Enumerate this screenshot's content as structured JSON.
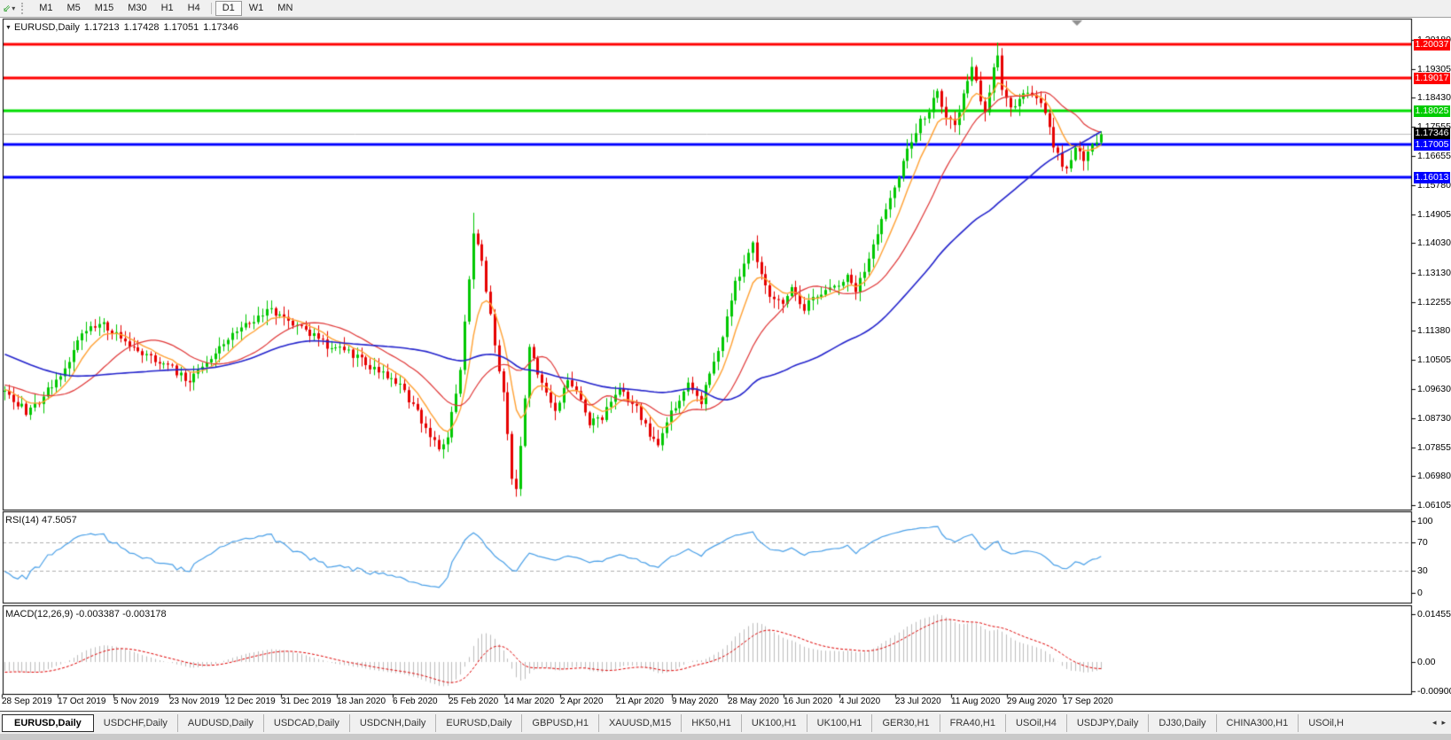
{
  "toolbar": {
    "timeframes": [
      "M1",
      "M5",
      "M15",
      "M30",
      "H1",
      "H4",
      "D1",
      "W1",
      "MN"
    ],
    "active_timeframe": "D1",
    "separators_before": [
      "D1"
    ],
    "icons": {
      "chart_tool": "⇙",
      "dropdown_caret": "▾"
    }
  },
  "chart_header": {
    "collapse_icon": "▼",
    "symbol": "EURUSD,Daily",
    "open": "1.17213",
    "high": "1.17428",
    "low": "1.17051",
    "close": "1.17346"
  },
  "tabs": {
    "items": [
      "EURUSD,Daily",
      "USDCHF,Daily",
      "AUDUSD,Daily",
      "USDCAD,Daily",
      "USDCNH,Daily",
      "EURUSD,Daily",
      "GBPUSD,H1",
      "XAUUSD,M15",
      "HK50,H1",
      "UK100,H1",
      "UK100,H1",
      "GER30,H1",
      "FRA40,H1",
      "USOil,H4",
      "USDJPY,Daily",
      "DJ30,Daily",
      "CHINA300,H1",
      "USOil,H"
    ],
    "active_index": 0,
    "scroll_left": "◂",
    "scroll_right": "▸"
  },
  "chart_data": {
    "type": "candlestick",
    "symbol": "EURUSD",
    "timeframe": "Daily",
    "colors": {
      "bull": "#00c800",
      "bear": "#e60000",
      "macd_hist": "#bdbdbd",
      "macd_signal": "#e00000",
      "rsi_line": "#4aa0e8",
      "rsi_levels": "#b0b0b0"
    },
    "price_ticks": [
      "1.20180",
      "1.19305",
      "1.18430",
      "1.17555",
      "1.16655",
      "1.15780",
      "1.14905",
      "1.14030",
      "1.13130",
      "1.12255",
      "1.11380",
      "1.10505",
      "1.09630",
      "1.08730",
      "1.07855",
      "1.06980",
      "1.06105"
    ],
    "hlines": [
      {
        "price": "1.20037",
        "color": "#ff0000",
        "width": 3,
        "label_bg": "#ff0000"
      },
      {
        "price": "1.19017",
        "color": "#ff0000",
        "width": 3,
        "label_bg": "#ff0000"
      },
      {
        "price": "1.18025",
        "color": "#00dd00",
        "width": 3,
        "label_bg": "#00cc00"
      },
      {
        "price": "1.17346",
        "color": "#bdbdbd",
        "width": 1,
        "label_bg": "#000000"
      },
      {
        "price": "1.17005",
        "color": "#0000ff",
        "width": 3,
        "label_bg": "#0000ff"
      },
      {
        "price": "1.16013",
        "color": "#0000ff",
        "width": 3,
        "label_bg": "#0000ff"
      }
    ],
    "x_labels": [
      "28 Sep 2019",
      "17 Oct 2019",
      "5 Nov 2019",
      "23 Nov 2019",
      "12 Dec 2019",
      "31 Dec 2019",
      "18 Jan 2020",
      "6 Feb 2020",
      "25 Feb 2020",
      "14 Mar 2020",
      "2 Apr 2020",
      "21 Apr 2020",
      "9 May 2020",
      "28 May 2020",
      "16 Jun 2020",
      "4 Jul 2020",
      "23 Jul 2020",
      "11 Aug 2020",
      "29 Aug 2020",
      "17 Sep 2020"
    ],
    "indicators": {
      "rsi_label": "RSI(14) 47.5057",
      "rsi": {
        "period": 14,
        "value": "47.5057",
        "levels": [
          70,
          30
        ],
        "axis": [
          "100",
          "70",
          "30",
          "0"
        ]
      },
      "macd_label": "MACD(12,26,9) -0.003387 -0.003178",
      "macd": {
        "fast": 12,
        "slow": 26,
        "signal": 9,
        "main_value": "-0.003387",
        "signal_value": "-0.003178",
        "axis": [
          "0.014556",
          "0.00",
          "-0.009001"
        ]
      }
    },
    "moving_averages": [
      {
        "type": "ema",
        "period": 8,
        "color": "#ffa133",
        "width": 1.4
      },
      {
        "type": "sma",
        "period": 20,
        "color": "#e03636",
        "width": 1.2
      },
      {
        "type": "sma",
        "period": 55,
        "color": "#2323cc",
        "width": 1.6
      }
    ],
    "anchors_pre": [
      [
        -60,
        1.125
      ],
      [
        -40,
        1.115
      ],
      [
        -20,
        1.1
      ],
      [
        -10,
        1.098
      ],
      [
        -1,
        1.0955
      ]
    ],
    "anchors": [
      [
        0,
        1.0952
      ],
      [
        5,
        1.0895
      ],
      [
        8,
        1.0925
      ],
      [
        12,
        1.0985
      ],
      [
        18,
        1.1125
      ],
      [
        22,
        1.116
      ],
      [
        26,
        1.1135
      ],
      [
        30,
        1.1085
      ],
      [
        37,
        1.104
      ],
      [
        43,
        1.099
      ],
      [
        48,
        1.106
      ],
      [
        52,
        1.112
      ],
      [
        57,
        1.1165
      ],
      [
        61,
        1.1205
      ],
      [
        67,
        1.116
      ],
      [
        75,
        1.1095
      ],
      [
        82,
        1.106
      ],
      [
        86,
        1.102
      ],
      [
        92,
        1.0975
      ],
      [
        97,
        1.0865
      ],
      [
        101,
        1.079
      ],
      [
        103,
        1.081
      ],
      [
        106,
        1.103
      ],
      [
        109,
        1.144
      ],
      [
        111,
        1.134
      ],
      [
        113,
        1.118
      ],
      [
        116,
        1.095
      ],
      [
        118,
        1.068
      ],
      [
        119,
        1.066
      ],
      [
        122,
        1.108
      ],
      [
        125,
        1.097
      ],
      [
        128,
        1.089
      ],
      [
        131,
        1.099
      ],
      [
        134,
        1.093
      ],
      [
        136,
        1.086
      ],
      [
        139,
        1.088
      ],
      [
        143,
        1.096
      ],
      [
        147,
        1.0905
      ],
      [
        150,
        1.082
      ],
      [
        152,
        1.08
      ],
      [
        155,
        1.089
      ],
      [
        159,
        1.097
      ],
      [
        162,
        1.092
      ],
      [
        164,
        1.101
      ],
      [
        167,
        1.112
      ],
      [
        170,
        1.128
      ],
      [
        174,
        1.14
      ],
      [
        176,
        1.13
      ],
      [
        178,
        1.1245
      ],
      [
        181,
        1.1215
      ],
      [
        183,
        1.126
      ],
      [
        186,
        1.121
      ],
      [
        189,
        1.124
      ],
      [
        191,
        1.1255
      ],
      [
        194,
        1.128
      ],
      [
        196,
        1.13
      ],
      [
        198,
        1.1265
      ],
      [
        200,
        1.132
      ],
      [
        202,
        1.1395
      ],
      [
        205,
        1.151
      ],
      [
        207,
        1.156
      ],
      [
        209,
        1.166
      ],
      [
        211,
        1.172
      ],
      [
        213,
        1.177
      ],
      [
        215,
        1.181
      ],
      [
        217,
        1.187
      ],
      [
        219,
        1.178
      ],
      [
        221,
        1.176
      ],
      [
        223,
        1.185
      ],
      [
        225,
        1.193
      ],
      [
        227,
        1.184
      ],
      [
        228,
        1.179
      ],
      [
        230,
        1.194
      ],
      [
        231,
        1.196
      ],
      [
        232,
        1.186
      ],
      [
        234,
        1.182
      ],
      [
        236,
        1.183
      ],
      [
        238,
        1.186
      ],
      [
        240,
        1.1845
      ],
      [
        242,
        1.18
      ],
      [
        244,
        1.169
      ],
      [
        246,
        1.164
      ],
      [
        247,
        1.1625
      ],
      [
        249,
        1.168
      ],
      [
        251,
        1.166
      ],
      [
        253,
        1.17
      ],
      [
        255,
        1.1735
      ]
    ],
    "wick_overrides": {
      "5": {
        "low": 1.0879
      },
      "109": {
        "high": 1.1495
      },
      "119": {
        "low": 1.0636
      },
      "225": {
        "high": 1.1966
      },
      "231": {
        "high": 1.201
      },
      "247": {
        "low": 1.1613
      }
    }
  }
}
